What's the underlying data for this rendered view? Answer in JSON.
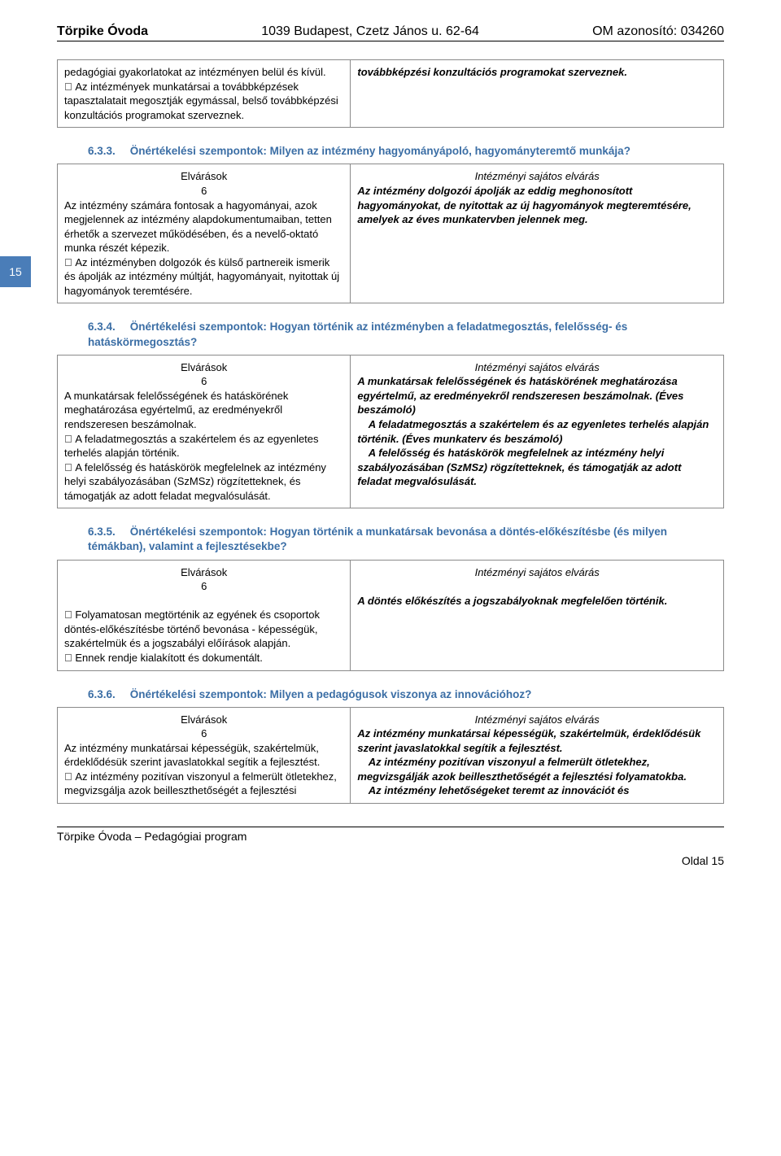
{
  "header": {
    "left": "Törpike Óvoda",
    "mid": "1039 Budapest, Czetz János u. 62-64",
    "right": "OM azonosító: 034260"
  },
  "sideTab": "15",
  "topTable": {
    "left": "pedagógiai gyakorlatokat az intézményen belül és kívül.\n Az intézmények munkatársai a továbbképzések tapasztalatait megosztják egymással, belső továbbképzési konzultációs programokat szerveznek.",
    "right": "továbbképzési konzultációs programokat szerveznek."
  },
  "sections": [
    {
      "num": "6.3.3.",
      "title": "Önértékelési szempontok: Milyen az intézmény hagyományápoló, hagyományteremtő munkája?",
      "colLeftHead": "Elvárások\n6",
      "colRightHead": "Intézményi sajátos elvárás",
      "left": "Az intézmény számára fontosak a hagyományai, azok megjelennek az intézmény alapdokumentumaiban, tetten érhetők a szervezet működésében, és a nevelő-oktató munka részét képezik.\n Az intézményben dolgozók és külső partnereik ismerik és ápolják az intézmény múltját, hagyományait, nyitottak új hagyományok teremtésére.",
      "right": "Az intézmény dolgozói ápolják az eddig meghonosított hagyományokat, de nyitottak az új hagyományok megteremtésére, amelyek az éves munkatervben jelennek meg."
    },
    {
      "num": "6.3.4.",
      "title": "Önértékelési szempontok: Hogyan történik az intézményben a feladatmegosztás, felelősség- és hatáskörmegosztás?",
      "colLeftHead": "Elvárások\n6",
      "colRightHead": "Intézményi sajátos elvárás",
      "left": "A munkatársak felelősségének és hatáskörének meghatározása egyértelmű, az eredményekről rendszeresen beszámolnak.\n A feladatmegosztás a szakértelem és az egyenletes terhelés alapján történik.\n A felelősség és hatáskörök megfelelnek az intézmény helyi szabályozásában (SzMSz) rögzítetteknek, és támogatják az adott feladat megvalósulását.",
      "right": "A munkatársak felelősségének és hatáskörének meghatározása egyértelmű, az eredményekről rendszeresen beszámolnak. (Éves beszámoló)\n A feladatmegosztás a szakértelem és az egyenletes terhelés alapján történik. (Éves munkaterv és beszámoló)\n A felelősség és hatáskörök megfelelnek az intézmény helyi szabályozásában (SzMSz) rögzítetteknek, és támogatják az adott feladat megvalósulását."
    },
    {
      "num": "6.3.5.",
      "title": "Önértékelési szempontok: Hogyan történik a munkatársak bevonása a döntés-előkészítésbe (és milyen témákban), valamint a fejlesztésekbe?",
      "colLeftHead": "Elvárások\n6",
      "colRightHead": "Intézményi sajátos elvárás",
      "left": "\n Folyamatosan megtörténik az egyének és csoportok döntés-előkészítésbe történő bevonása - képességük, szakértelmük és a jogszabályi előírások alapján.\n Ennek rendje kialakított és dokumentált.",
      "right": "\nA döntés előkészítés a jogszabályoknak megfelelően történik."
    },
    {
      "num": "6.3.6.",
      "title": "Önértékelési szempontok: Milyen a pedagógusok viszonya az innovációhoz?",
      "colLeftHead": "Elvárások\n6",
      "colRightHead": "Intézményi sajátos elvárás",
      "left": "Az intézmény munkatársai képességük, szakértelmük, érdeklődésük szerint javaslatokkal segítik a fejlesztést.\n Az intézmény pozitívan viszonyul a felmerült ötletekhez, megvizsgálja azok beilleszthetőségét a fejlesztési",
      "right": "Az intézmény munkatársai képességük, szakértelmük, érdeklődésük szerint javaslatokkal segítik a fejlesztést.\n Az intézmény pozitívan viszonyul a felmerült ötletekhez, megvizsgálják azok beilleszthetőségét a fejlesztési folyamatokba.\n Az intézmény lehetőségeket teremt az innovációt és"
    }
  ],
  "footer": {
    "left": "Törpike Óvoda – Pedagógiai program",
    "right": "Oldal 15"
  }
}
